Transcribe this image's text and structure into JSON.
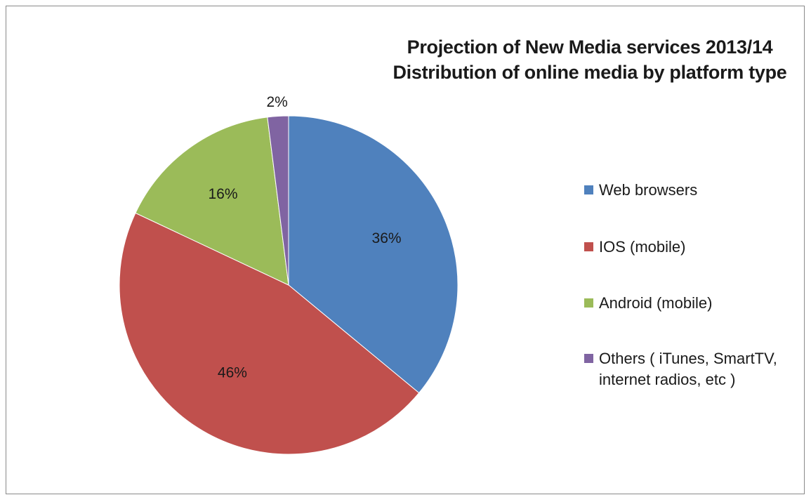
{
  "chart_data": {
    "type": "pie",
    "title": "Projection of New Media services 2013/14",
    "subtitle": "Distribution of online media by platform type",
    "categories": [
      "Web browsers",
      "IOS (mobile)",
      "Android (mobile)",
      "Others ( iTunes, SmartTV, internet radios,  etc )"
    ],
    "values": [
      36,
      46,
      16,
      2
    ],
    "data_labels": [
      "36%",
      "46%",
      "16%",
      "2%"
    ],
    "colors": [
      "#4f81bd",
      "#c0504d",
      "#9bbb59",
      "#8064a2"
    ],
    "legend_position": "right",
    "start_angle": "12 o'clock, clockwise"
  }
}
